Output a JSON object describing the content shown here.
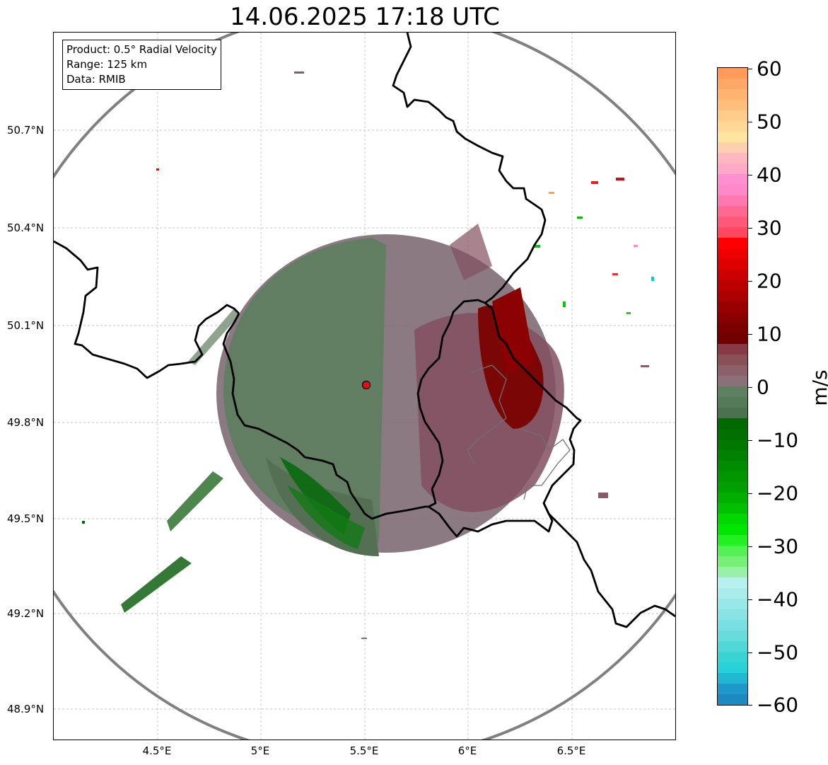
{
  "title": "14.06.2025 17:18 UTC",
  "info": {
    "line1": "Product: 0.5° Radial Velocity",
    "line2": "Range: 125 km",
    "line3": "Data: RMIB"
  },
  "lat_ticks": [
    "50.7°N",
    "50.4°N",
    "50.1°N",
    "49.8°N",
    "49.5°N",
    "49.2°N",
    "48.9°N"
  ],
  "lon_ticks": [
    "4.5°E",
    "5°E",
    "5.5°E",
    "6°E",
    "6.5°E"
  ],
  "colorbar": {
    "unit": "m/s",
    "ticks": [
      "60",
      "50",
      "40",
      "30",
      "20",
      "10",
      "0",
      "−10",
      "−20",
      "−30",
      "−40",
      "−50",
      "−60"
    ],
    "range": [
      -60,
      60
    ]
  },
  "colors": {
    "approach": "#5e8060",
    "recede": "#8a5a66",
    "strong_recede": "#7a0000",
    "strong_approach": "#006a00",
    "range_ring": "#808080",
    "radar_site": "#e01010"
  }
}
